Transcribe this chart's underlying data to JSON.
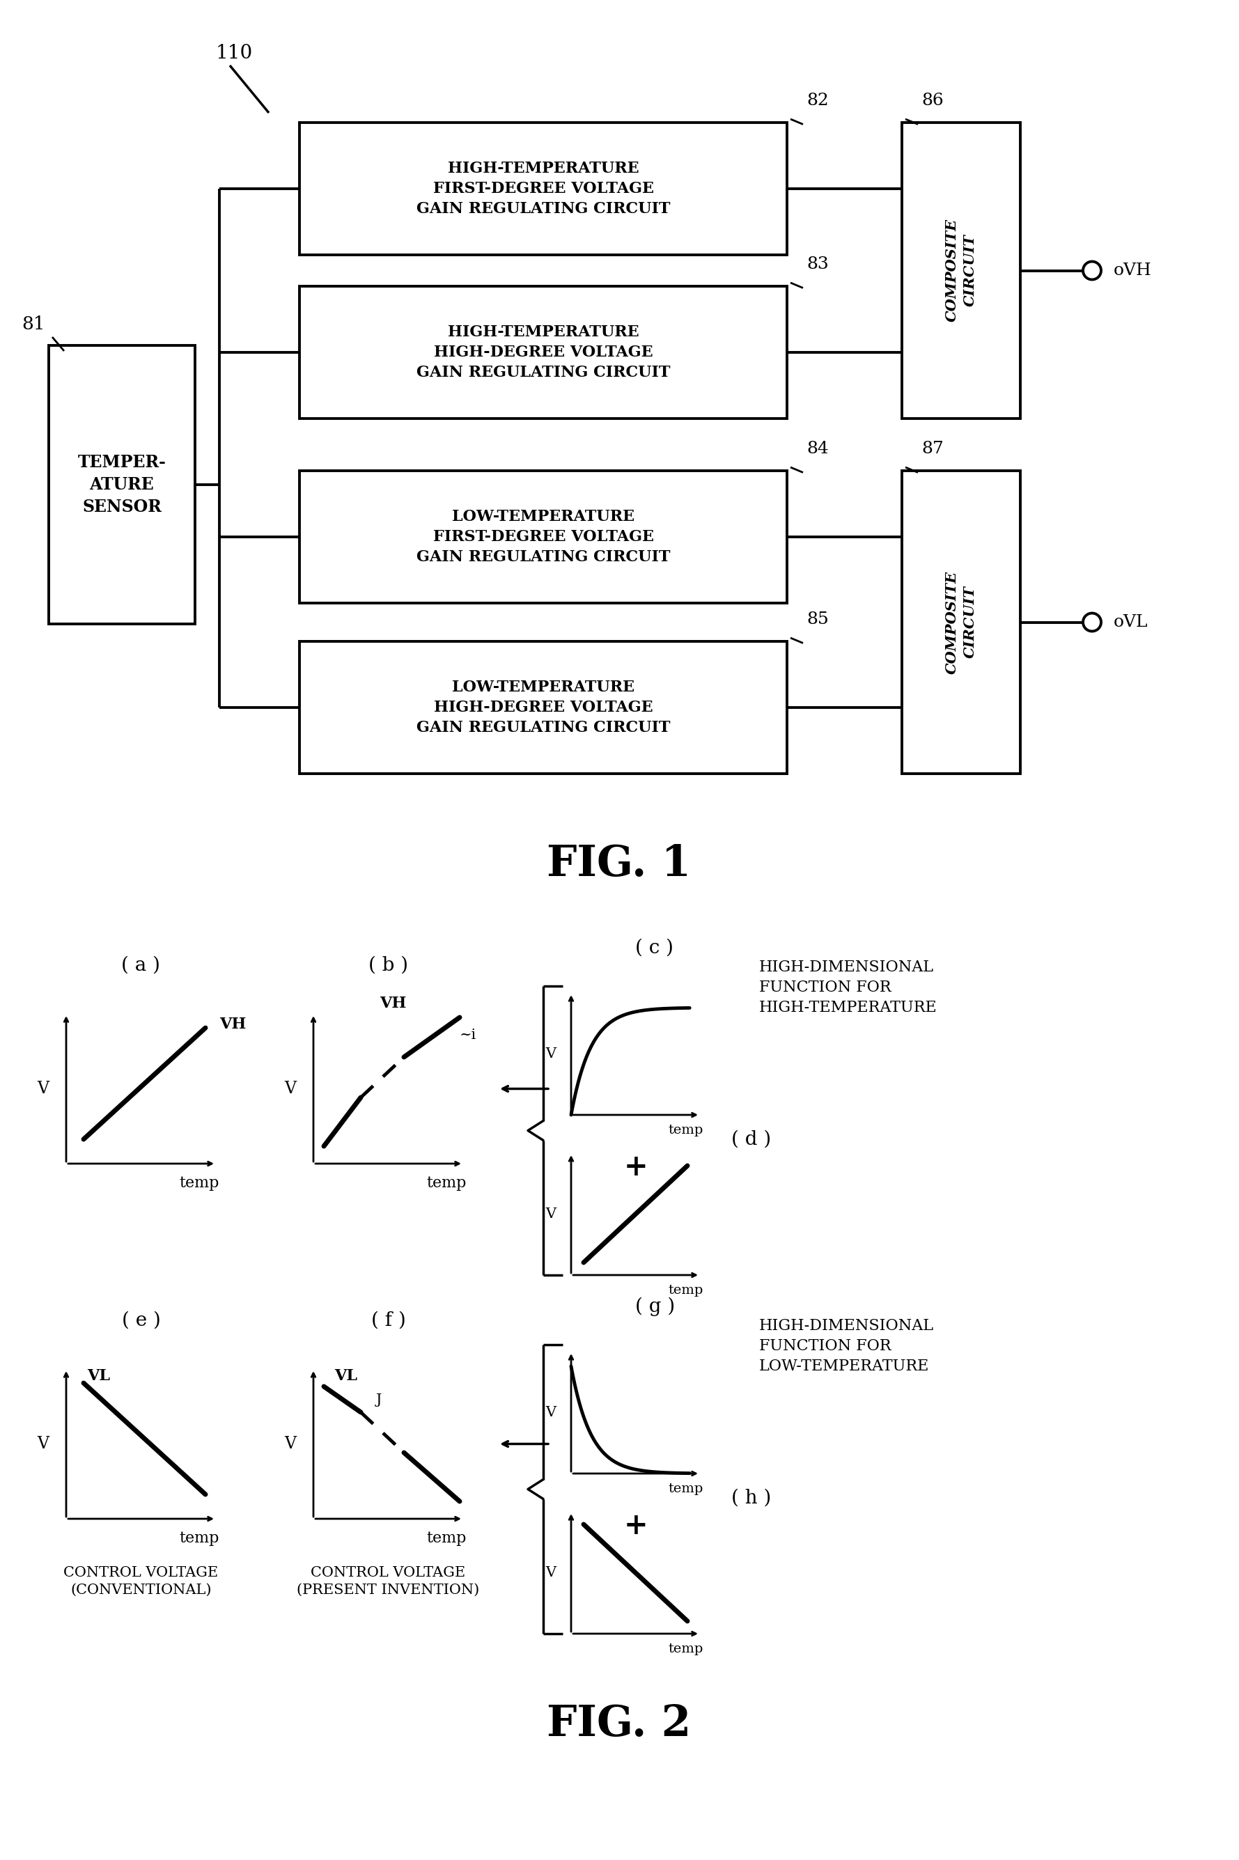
{
  "fig_width": 17.79,
  "fig_height": 26.71,
  "bg_color": "#ffffff",
  "line_color": "#000000",
  "fig1_title": "FIG. 1",
  "fig2_title": "FIG. 2",
  "label_110": "110",
  "label_81": "81",
  "label_82": "82",
  "label_83": "83",
  "label_84": "84",
  "label_85": "85",
  "label_86": "86",
  "label_87": "87",
  "box_sensor": "TEMPER-\nATURE\nSENSOR",
  "box_82": "HIGH-TEMPERATURE\nFIRST-DEGREE VOLTAGE\nGAIN REGULATING CIRCUIT",
  "box_83": "HIGH-TEMPERATURE\nHIGH-DEGREE VOLTAGE\nGAIN REGULATING CIRCUIT",
  "box_84": "LOW-TEMPERATURE\nFIRST-DEGREE VOLTAGE\nGAIN REGULATING CIRCUIT",
  "box_85": "LOW-TEMPERATURE\nHIGH-DEGREE VOLTAGE\nGAIN REGULATING CIRCUIT",
  "box_comp1": "COMPOSITE\nCIRCUIT",
  "box_comp2": "COMPOSITE\nCIRCUIT",
  "out_VH": "VH",
  "out_VL": "VL",
  "label_a": "( a )",
  "label_b": "( b )",
  "label_c": "( c )",
  "label_d": "( d )",
  "label_e": "( e )",
  "label_f": "( f )",
  "label_g": "( g )",
  "label_h": "( h )",
  "text_c": "HIGH-DIMENSIONAL\nFUNCTION FOR\nHIGH-TEMPERATURE",
  "text_g": "HIGH-DIMENSIONAL\nFUNCTION FOR\nLOW-TEMPERATURE",
  "text_VH_a": "VH",
  "text_VH_b": "VH",
  "text_VL_e": "VL",
  "text_VL_f": "VL",
  "text_i": "~i",
  "text_j": "J",
  "text_V": "V",
  "text_temp": "temp",
  "text_plus1": "+",
  "text_plus2": "+",
  "caption_e": "CONTROL VOLTAGE\n(CONVENTIONAL)",
  "caption_f": "CONTROL VOLTAGE\n(PRESENT INVENTION)"
}
